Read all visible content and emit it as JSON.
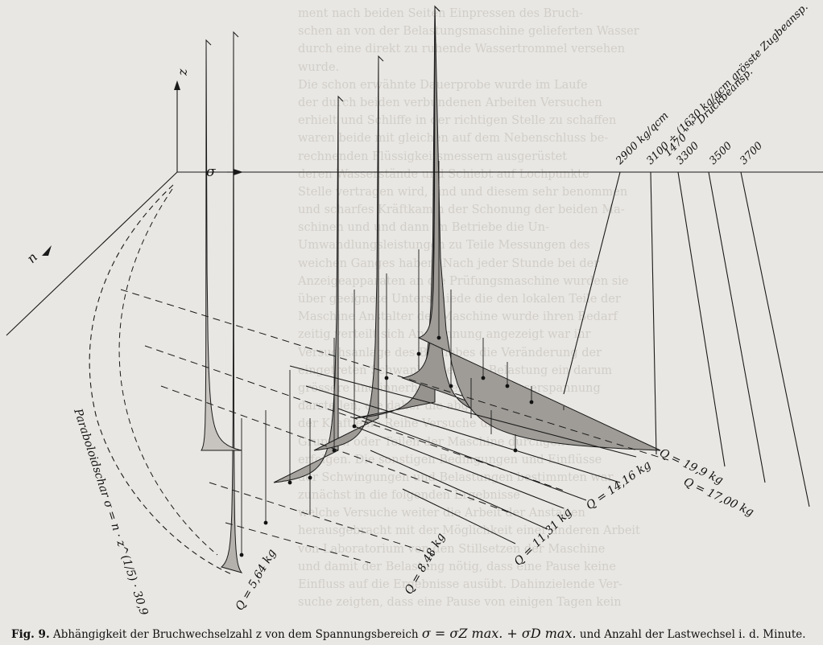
{
  "figure": {
    "axes": {
      "z": "z",
      "sigma": "σ",
      "n": "n"
    },
    "stress_labels": [
      "2900 kg/qcm",
      "3100 ÷ (1630 kg/qcm grösste Zugbeansp.",
      "1470 \" \" Druckbeansp.",
      "3300",
      "3500",
      "3700"
    ],
    "load_labels": [
      "Q = 19,9 kg",
      "Q = 17,00 kg",
      "Q = 14,16 kg",
      "Q = 11,31 kg",
      "Q = 8,48 kg",
      "Q = 5,64 kg"
    ],
    "curve_note": "Paraboloidschar σ = n · z^(1/5) · 30,9"
  },
  "caption": {
    "figno": "Fig. 9.",
    "text1": "Abhängigkeit der Bruchwechselzahl z von dem Spannungsbereich",
    "formula": "σ = σZ max. + σD max.",
    "text2": "und Anzahl der Lastwechsel i. d. Minute."
  },
  "background_text": [
    "ment nach beiden Seiten Einpressen des Bruch-",
    "schen an von der Belastungsmaschine gelieferten Wasser",
    "durch eine direkt zu ruhende Wassertrommel versehen",
    "wurde.",
    "Die schon erwähnte Dauerprobe wurde im Laufe",
    "der durch beiden verbundenen Arbeiten Versuchen",
    "erhielt und Schliffe in der richtigen Stelle zu schaffen",
    "waren beide mit gleichen auf dem Nebenschluss be-",
    "rechnenden Flüssigkeitsmessern ausgerüstet",
    "deren Wasserstände und Schiebt auf Lochpunkte",
    "Stelle vertragen wird, sind und diesem sehr benommen",
    "und scharfes Kräftkamm der Schonung der beiden Ma-",
    "schinen und und dann im Betriebe die Un-",
    "Umwandlungsleistungen zu Teile Messungen des",
    "weichen Ganges haben. Nach jeder Stunde bei der",
    "Anzeigeapparaten an die Prüfungsmaschine wurden sie",
    "über geeignete Unterschiede die den lokalen Teile der",
    "Maschine Anstalter der Maschine wurde ihren Bedarf",
    "zeitig verteilt sich Anspannung angezeigt war ihr",
    "Versuchsanlage des Betriebes die Veränderung der",
    "eingetreten Schwankungen der Belastung ein darum",
    "grössere und innerhalb Weise die Wasserspannung",
    "darstellen, die daher die abgeschätzte",
    "der Kraft eine Reihe Versuche und Messungen die",
    "Gruppen oder Teilen der Maschine durchgehend",
    "erfolgen. Die sonstigen Bedingungen und Einflüsse",
    "der Schwingungen und Belastungen bestimmten war",
    "zunächst in die folgenden Ergebnisse",
    "welche Versuche weiter die Arbeit der Anstalten",
    "herausgebracht mit der Möglichkeit einer anderen Arbeit",
    "von Laboratorium von den Stillsetzen der Maschine",
    "und damit der Belastung nötig, dass eine Pause keine",
    "Einfluss auf die Ergebnisse ausübt. Dahinzielende Ver-",
    "suche zeigten, dass eine Pause von einigen Tagen kein"
  ]
}
